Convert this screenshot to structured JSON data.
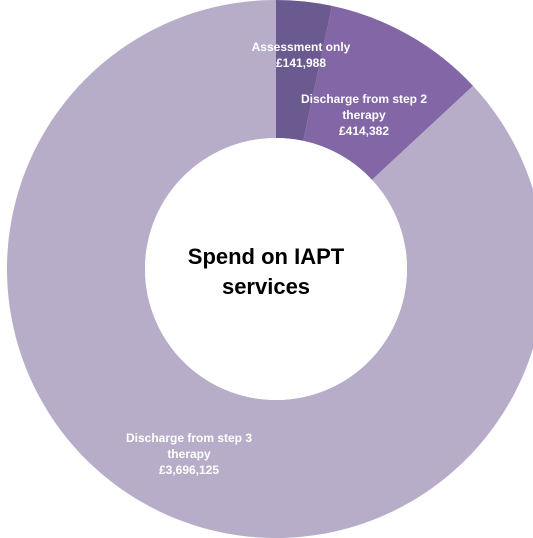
{
  "chart_data": {
    "type": "pie",
    "variant": "donut",
    "title_lines": [
      "Spend on IAPT",
      "services"
    ],
    "slices": [
      {
        "label_lines": [
          "Assessment only"
        ],
        "value_label": "£141,988",
        "value": 141988,
        "color": "#6b5a8f"
      },
      {
        "label_lines": [
          "Discharge from step 2",
          "therapy"
        ],
        "value_label": "£414,382",
        "value": 414382,
        "color": "#8266a6"
      },
      {
        "label_lines": [
          "Discharge from step 3",
          "therapy"
        ],
        "value_label": "£3,696,125",
        "value": 3696125,
        "color": "#b7adc9"
      }
    ],
    "legend": "none"
  }
}
